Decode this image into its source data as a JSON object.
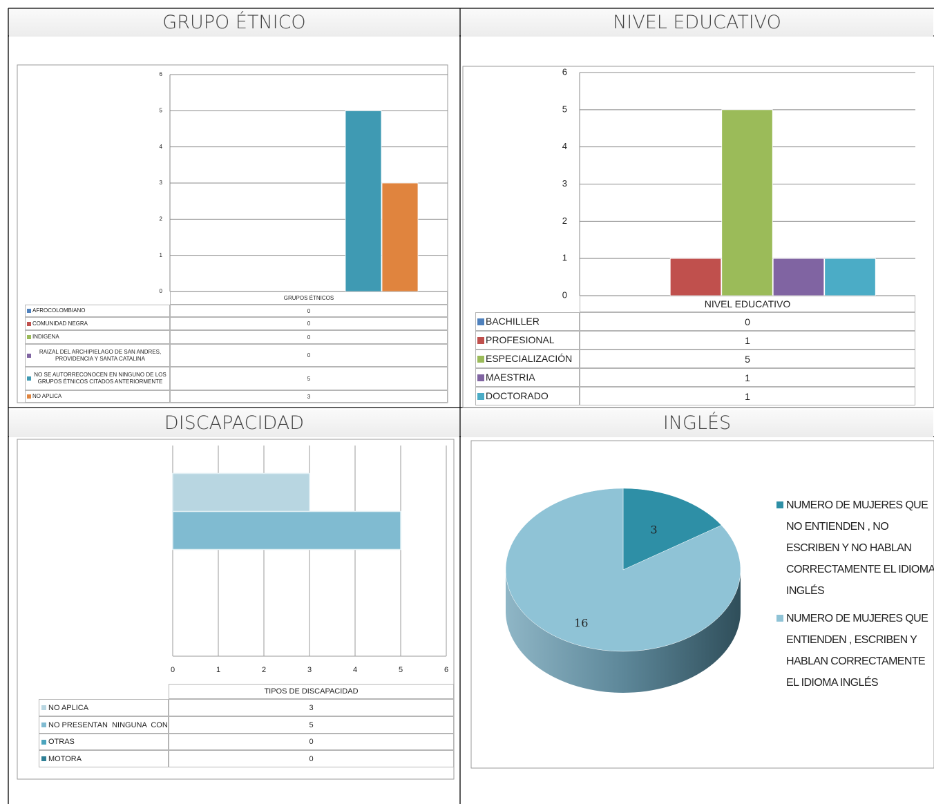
{
  "chart_data": [
    {
      "type": "bar",
      "title": "GRUPO ÉTNICO",
      "categories": [
        "GRUPOS ÉTNICOS"
      ],
      "series": [
        {
          "name": "AFROCOLOMBIANO",
          "color": "#4f81bd",
          "values": [
            0
          ]
        },
        {
          "name": "COMUNIDAD NEGRA",
          "color": "#c0504d",
          "values": [
            0
          ]
        },
        {
          "name": "INDIGENA",
          "color": "#9bbb59",
          "values": [
            0
          ]
        },
        {
          "name": "RAIZAL DEL ARCHIPIELAGO DE SAN ANDRES, PROVIDENCIA Y SANTA CATALINA",
          "color": "#8064a2",
          "values": [
            0
          ]
        },
        {
          "name": "NO SE AUTORRECONOCEN EN NINGUNO DE LOS GRUPOS ÉTNICOS CITADOS ANTERIORMENTE",
          "color": "#3f9ab3",
          "values": [
            5
          ]
        },
        {
          "name": "NO APLICA",
          "color": "#e0843e",
          "values": [
            3
          ]
        }
      ],
      "ylim": [
        0,
        6
      ],
      "yticks": [
        0,
        1,
        2,
        3,
        4,
        5,
        6
      ],
      "grid": true
    },
    {
      "type": "bar",
      "title": "NIVEL EDUCATIVO",
      "categories": [
        "NIVEL EDUCATIVO"
      ],
      "series": [
        {
          "name": "BACHILLER",
          "color": "#4f81bd",
          "values": [
            0
          ]
        },
        {
          "name": "PROFESIONAL",
          "color": "#c0504d",
          "values": [
            1
          ]
        },
        {
          "name": "ESPECIALIZACIÓN",
          "color": "#9bbb59",
          "values": [
            5
          ]
        },
        {
          "name": "MAESTRIA",
          "color": "#8064a2",
          "values": [
            1
          ]
        },
        {
          "name": "DOCTORADO",
          "color": "#4bacc6",
          "values": [
            1
          ]
        }
      ],
      "ylim": [
        0,
        6
      ],
      "yticks": [
        0,
        1,
        2,
        3,
        4,
        5,
        6
      ],
      "grid": true
    },
    {
      "type": "hbar",
      "title": "DISCAPACIDAD",
      "categories": [
        "TIPOS DE DISCAPACIDAD"
      ],
      "series": [
        {
          "name": "NO APLICA",
          "color": "#b8d6e1",
          "values": [
            3
          ]
        },
        {
          "name": "NO PRESENTAN  NINGUNA  CONDICIÓN",
          "color": "#80bbd1",
          "values": [
            5
          ]
        },
        {
          "name": "OTRAS",
          "color": "#4ba4bd",
          "values": [
            0
          ]
        },
        {
          "name": "MOTORA",
          "color": "#2e7f95",
          "values": [
            0
          ]
        }
      ],
      "xlim": [
        0,
        6
      ],
      "xticks": [
        0,
        1,
        2,
        3,
        4,
        5,
        6
      ],
      "grid": true
    },
    {
      "type": "pie",
      "title": "INGLÉS",
      "labels": [
        "NUMERO DE MUJERES QUE NO ENTIENDEN , NO ESCRIBEN Y NO HABLAN CORRECTAMENTE EL IDIOMA INGLÉS",
        "NUMERO DE MUJERES QUE ENTIENDEN , ESCRIBEN Y HABLAN CORRECTAMENTE EL IDIOMA INGLÉS"
      ],
      "values": [
        3,
        16
      ],
      "colors": [
        "#2e8fa6",
        "#8fc3d6"
      ]
    }
  ]
}
